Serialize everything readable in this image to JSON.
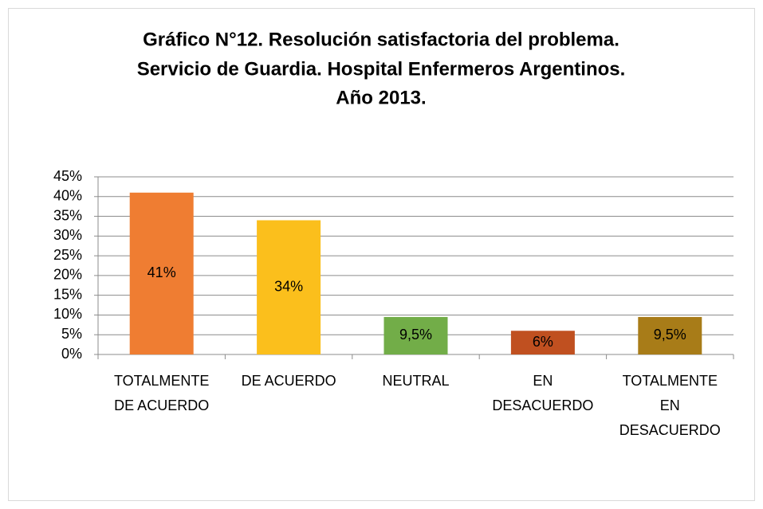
{
  "chart_data": {
    "type": "bar",
    "title": [
      "Gráfico N°12. Resolución satisfactoria del problema.",
      "Servicio de Guardia. Hospital Enfermeros Argentinos.",
      "Año 2013."
    ],
    "categories": [
      "TOTALMENTE DE ACUERDO",
      "DE ACUERDO",
      "NEUTRAL",
      "EN DESACUERDO",
      "TOTALMENTE EN DESACUERDO"
    ],
    "values": [
      41,
      34,
      9.5,
      6,
      9.5
    ],
    "value_labels": [
      "41%",
      "34%",
      "9,5%",
      "6%",
      "9,5%"
    ],
    "colors": [
      "#ef7d32",
      "#fbbf1c",
      "#72ad48",
      "#c05020",
      "#a87c18"
    ],
    "ylim": [
      0,
      45
    ],
    "yticks": [
      {
        "value": 0,
        "label": "0%"
      },
      {
        "value": 5,
        "label": "5%"
      },
      {
        "value": 10,
        "label": "10%"
      },
      {
        "value": 15,
        "label": "15%"
      },
      {
        "value": 20,
        "label": "20%"
      },
      {
        "value": 25,
        "label": "25%"
      },
      {
        "value": 30,
        "label": "30%"
      },
      {
        "value": 35,
        "label": "35%"
      },
      {
        "value": 40,
        "label": "40%"
      },
      {
        "value": 45,
        "label": "45%"
      }
    ],
    "grid": true
  }
}
